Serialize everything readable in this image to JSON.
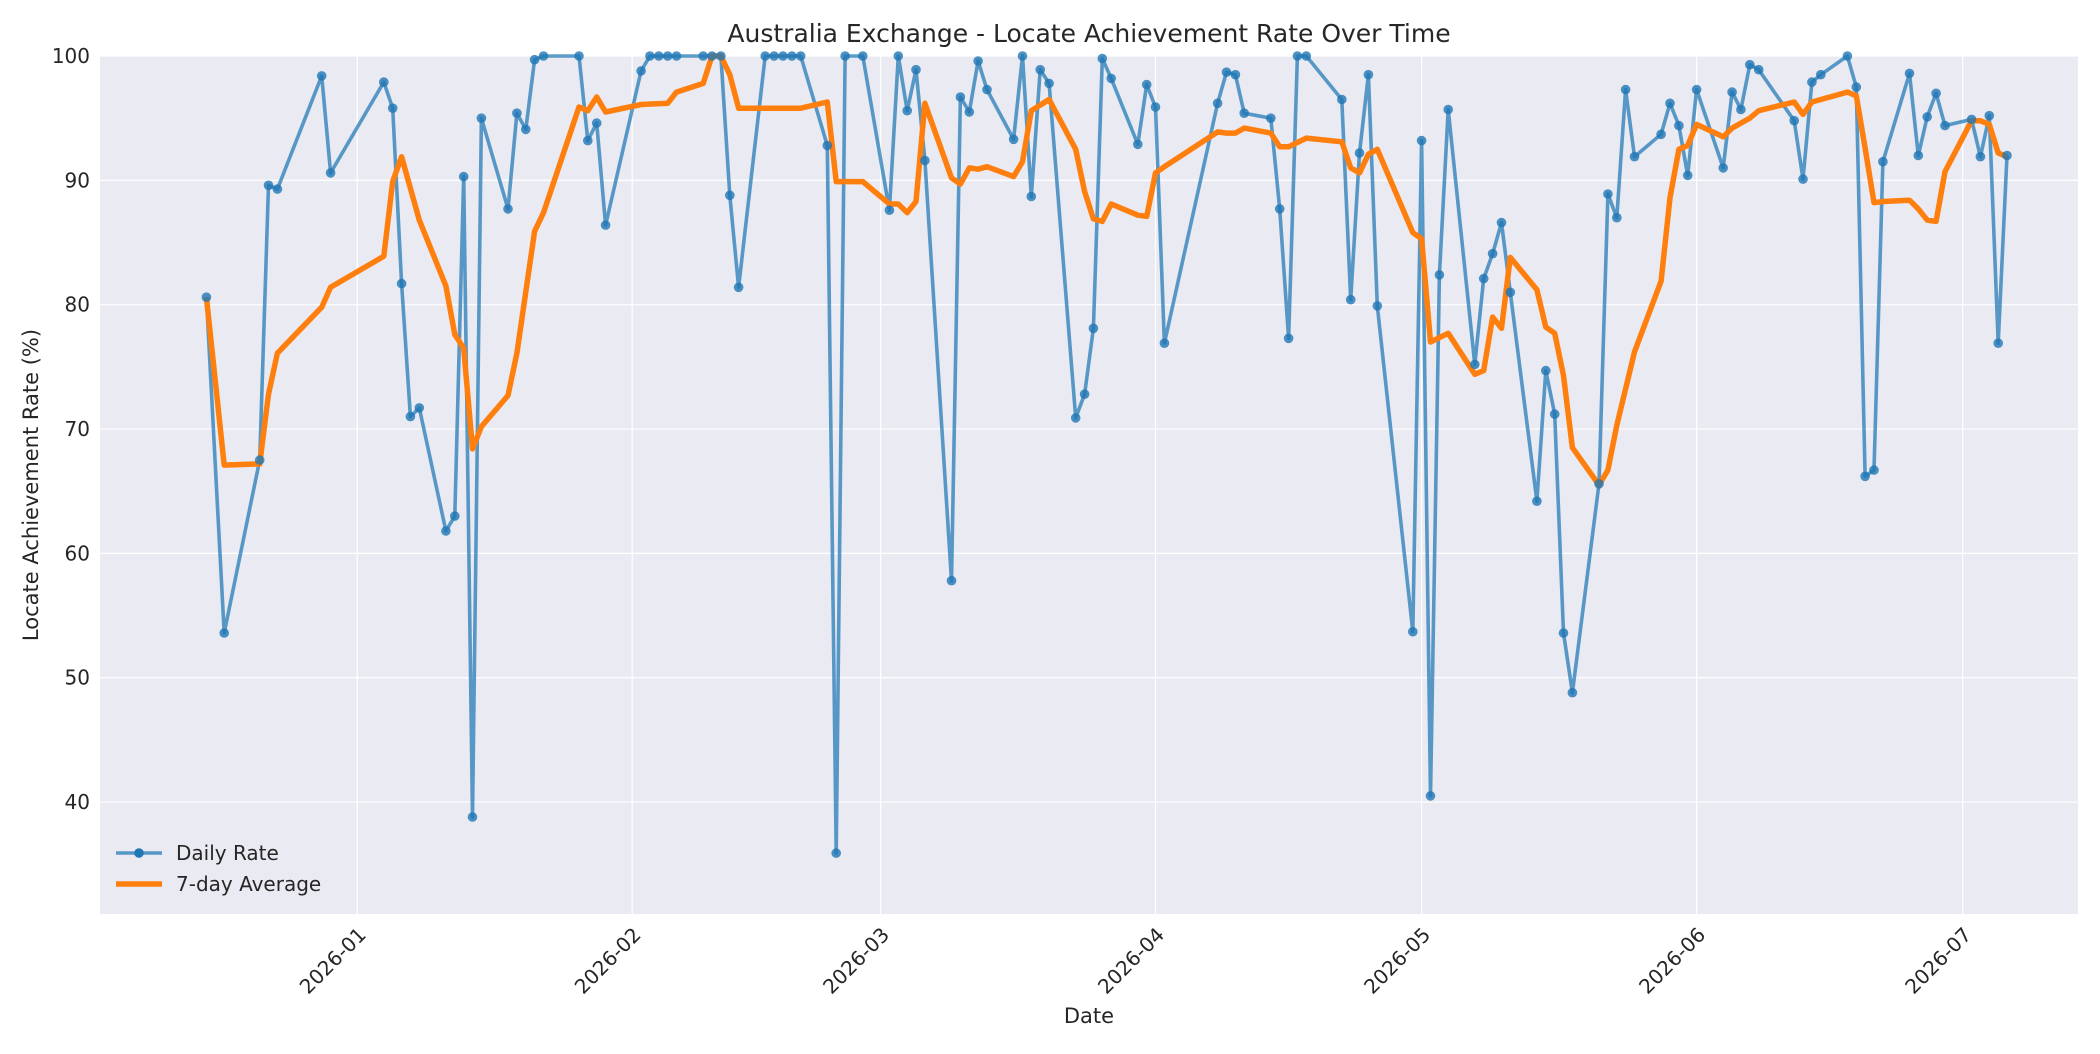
{
  "chart_data": {
    "type": "line",
    "title": "Australia Exchange - Locate Achievement Rate Over Time",
    "xlabel": "Date",
    "ylabel": "Locate Achievement Rate (%)",
    "x_domain": [
      "2025-12-03",
      "2026-07-14"
    ],
    "ylim": [
      31,
      100
    ],
    "yticks": [
      40,
      50,
      60,
      70,
      80,
      90,
      100
    ],
    "xticks": [
      "2026-01-01",
      "2026-02-01",
      "2026-03-01",
      "2026-04-01",
      "2026-05-01",
      "2026-06-01",
      "2026-07-01"
    ],
    "xtick_labels": [
      "2026-01",
      "2026-02",
      "2026-03",
      "2026-04",
      "2026-05",
      "2026-06",
      "2026-07"
    ],
    "grid": true,
    "legend_position": "lower-left",
    "colors": {
      "daily": "#1f77b4",
      "avg": "#ff7f0e",
      "background": "#eaeaf2",
      "grid": "#ffffff"
    },
    "series": [
      {
        "name": "Daily Rate",
        "style": "line-with-markers",
        "points": [
          [
            "2025-12-15",
            80.6
          ],
          [
            "2025-12-17",
            53.6
          ],
          [
            "2025-12-21",
            67.5
          ],
          [
            "2025-12-22",
            89.6
          ],
          [
            "2025-12-23",
            89.3
          ],
          [
            "2025-12-28",
            98.4
          ],
          [
            "2025-12-29",
            90.6
          ],
          [
            "2026-01-04",
            97.9
          ],
          [
            "2026-01-05",
            95.8
          ],
          [
            "2026-01-06",
            81.7
          ],
          [
            "2026-01-07",
            71.0
          ],
          [
            "2026-01-08",
            71.7
          ],
          [
            "2026-01-11",
            61.8
          ],
          [
            "2026-01-12",
            63.0
          ],
          [
            "2026-01-13",
            90.3
          ],
          [
            "2026-01-14",
            38.8
          ],
          [
            "2026-01-15",
            95.0
          ],
          [
            "2026-01-18",
            87.7
          ],
          [
            "2026-01-19",
            95.4
          ],
          [
            "2026-01-20",
            94.1
          ],
          [
            "2026-01-21",
            99.7
          ],
          [
            "2026-01-22",
            100.0
          ],
          [
            "2026-01-26",
            100.0
          ],
          [
            "2026-01-27",
            93.2
          ],
          [
            "2026-01-28",
            94.6
          ],
          [
            "2026-01-29",
            86.4
          ],
          [
            "2026-02-02",
            98.8
          ],
          [
            "2026-02-03",
            100.0
          ],
          [
            "2026-02-04",
            100.0
          ],
          [
            "2026-02-05",
            100.0
          ],
          [
            "2026-02-06",
            100.0
          ],
          [
            "2026-02-09",
            100.0
          ],
          [
            "2026-02-10",
            100.0
          ],
          [
            "2026-02-11",
            100.0
          ],
          [
            "2026-02-12",
            88.8
          ],
          [
            "2026-02-13",
            81.4
          ],
          [
            "2026-02-16",
            100.0
          ],
          [
            "2026-02-17",
            100.0
          ],
          [
            "2026-02-18",
            100.0
          ],
          [
            "2026-02-19",
            100.0
          ],
          [
            "2026-02-20",
            100.0
          ],
          [
            "2026-02-23",
            92.8
          ],
          [
            "2026-02-24",
            35.9
          ],
          [
            "2026-02-25",
            100.0
          ],
          [
            "2026-02-27",
            100.0
          ],
          [
            "2026-03-02",
            87.6
          ],
          [
            "2026-03-03",
            100.0
          ],
          [
            "2026-03-04",
            95.6
          ],
          [
            "2026-03-05",
            98.9
          ],
          [
            "2026-03-06",
            91.6
          ],
          [
            "2026-03-09",
            57.8
          ],
          [
            "2026-03-10",
            96.7
          ],
          [
            "2026-03-11",
            95.5
          ],
          [
            "2026-03-12",
            99.6
          ],
          [
            "2026-03-13",
            97.3
          ],
          [
            "2026-03-16",
            93.3
          ],
          [
            "2026-03-17",
            100.0
          ],
          [
            "2026-03-18",
            88.7
          ],
          [
            "2026-03-19",
            98.9
          ],
          [
            "2026-03-20",
            97.8
          ],
          [
            "2026-03-23",
            70.9
          ],
          [
            "2026-03-24",
            72.8
          ],
          [
            "2026-03-25",
            78.1
          ],
          [
            "2026-03-26",
            99.8
          ],
          [
            "2026-03-27",
            98.2
          ],
          [
            "2026-03-30",
            92.9
          ],
          [
            "2026-03-31",
            97.7
          ],
          [
            "2026-04-01",
            95.9
          ],
          [
            "2026-04-02",
            76.9
          ],
          [
            "2026-04-08",
            96.2
          ],
          [
            "2026-04-09",
            98.7
          ],
          [
            "2026-04-10",
            98.5
          ],
          [
            "2026-04-11",
            95.4
          ],
          [
            "2026-04-14",
            95.0
          ],
          [
            "2026-04-15",
            87.7
          ],
          [
            "2026-04-16",
            77.3
          ],
          [
            "2026-04-17",
            100.0
          ],
          [
            "2026-04-18",
            100.0
          ],
          [
            "2026-04-22",
            96.5
          ],
          [
            "2026-04-23",
            80.4
          ],
          [
            "2026-04-24",
            92.2
          ],
          [
            "2026-04-25",
            98.5
          ],
          [
            "2026-04-26",
            79.9
          ],
          [
            "2026-04-30",
            53.7
          ],
          [
            "2026-05-01",
            93.2
          ],
          [
            "2026-05-02",
            40.5
          ],
          [
            "2026-05-03",
            82.4
          ],
          [
            "2026-05-04",
            95.7
          ],
          [
            "2026-05-07",
            75.2
          ],
          [
            "2026-05-08",
            82.1
          ],
          [
            "2026-05-09",
            84.1
          ],
          [
            "2026-05-10",
            86.6
          ],
          [
            "2026-05-11",
            81.0
          ],
          [
            "2026-05-14",
            64.2
          ],
          [
            "2026-05-15",
            74.7
          ],
          [
            "2026-05-16",
            71.2
          ],
          [
            "2026-05-17",
            53.6
          ],
          [
            "2026-05-18",
            48.8
          ],
          [
            "2026-05-21",
            65.6
          ],
          [
            "2026-05-22",
            88.9
          ],
          [
            "2026-05-23",
            87.0
          ],
          [
            "2026-05-24",
            97.3
          ],
          [
            "2026-05-25",
            91.9
          ],
          [
            "2026-05-28",
            93.7
          ],
          [
            "2026-05-29",
            96.2
          ],
          [
            "2026-05-30",
            94.4
          ],
          [
            "2026-05-31",
            90.4
          ],
          [
            "2026-06-01",
            97.3
          ],
          [
            "2026-06-04",
            91.0
          ],
          [
            "2026-06-05",
            97.1
          ],
          [
            "2026-06-06",
            95.7
          ],
          [
            "2026-06-07",
            99.3
          ],
          [
            "2026-06-08",
            98.9
          ],
          [
            "2026-06-12",
            94.8
          ],
          [
            "2026-06-13",
            90.1
          ],
          [
            "2026-06-14",
            97.9
          ],
          [
            "2026-06-15",
            98.5
          ],
          [
            "2026-06-18",
            100.0
          ],
          [
            "2026-06-19",
            97.5
          ],
          [
            "2026-06-20",
            66.2
          ],
          [
            "2026-06-21",
            66.7
          ],
          [
            "2026-06-22",
            91.5
          ],
          [
            "2026-06-25",
            98.6
          ],
          [
            "2026-06-26",
            92.0
          ],
          [
            "2026-06-27",
            95.1
          ],
          [
            "2026-06-28",
            97.0
          ],
          [
            "2026-06-29",
            94.4
          ],
          [
            "2026-07-02",
            94.9
          ],
          [
            "2026-07-03",
            91.9
          ],
          [
            "2026-07-04",
            95.2
          ],
          [
            "2026-07-05",
            76.9
          ],
          [
            "2026-07-06",
            92.0
          ]
        ]
      },
      {
        "name": "7-day Average",
        "style": "line",
        "points": [
          [
            "2025-12-15",
            80.6
          ],
          [
            "2025-12-17",
            67.1
          ],
          [
            "2025-12-21",
            67.2
          ],
          [
            "2025-12-22",
            72.8
          ],
          [
            "2025-12-23",
            76.1
          ],
          [
            "2025-12-28",
            79.8
          ],
          [
            "2025-12-29",
            81.4
          ],
          [
            "2026-01-04",
            83.9
          ],
          [
            "2026-01-05",
            89.9
          ],
          [
            "2026-01-06",
            91.9
          ],
          [
            "2026-01-08",
            86.8
          ],
          [
            "2026-01-11",
            81.5
          ],
          [
            "2026-01-12",
            77.6
          ],
          [
            "2026-01-13",
            76.5
          ],
          [
            "2026-01-14",
            68.4
          ],
          [
            "2026-01-15",
            70.2
          ],
          [
            "2026-01-18",
            72.7
          ],
          [
            "2026-01-19",
            76.1
          ],
          [
            "2026-01-21",
            85.9
          ],
          [
            "2026-01-22",
            87.4
          ],
          [
            "2026-01-26",
            95.9
          ],
          [
            "2026-01-27",
            95.6
          ],
          [
            "2026-01-28",
            96.7
          ],
          [
            "2026-01-29",
            95.5
          ],
          [
            "2026-02-02",
            96.1
          ],
          [
            "2026-02-05",
            96.2
          ],
          [
            "2026-02-06",
            97.1
          ],
          [
            "2026-02-09",
            97.8
          ],
          [
            "2026-02-10",
            100.0
          ],
          [
            "2026-02-11",
            100.0
          ],
          [
            "2026-02-12",
            98.5
          ],
          [
            "2026-02-13",
            95.8
          ],
          [
            "2026-02-20",
            95.8
          ],
          [
            "2026-02-23",
            96.3
          ],
          [
            "2026-02-24",
            89.9
          ],
          [
            "2026-02-27",
            89.9
          ],
          [
            "2026-03-02",
            88.1
          ],
          [
            "2026-03-03",
            88.1
          ],
          [
            "2026-03-04",
            87.4
          ],
          [
            "2026-03-05",
            88.3
          ],
          [
            "2026-03-06",
            96.2
          ],
          [
            "2026-03-09",
            90.2
          ],
          [
            "2026-03-10",
            89.7
          ],
          [
            "2026-03-11",
            91.0
          ],
          [
            "2026-03-12",
            90.9
          ],
          [
            "2026-03-13",
            91.1
          ],
          [
            "2026-03-16",
            90.3
          ],
          [
            "2026-03-17",
            91.5
          ],
          [
            "2026-03-18",
            95.6
          ],
          [
            "2026-03-20",
            96.5
          ],
          [
            "2026-03-23",
            92.5
          ],
          [
            "2026-03-24",
            89.1
          ],
          [
            "2026-03-25",
            86.9
          ],
          [
            "2026-03-26",
            86.7
          ],
          [
            "2026-03-27",
            88.1
          ],
          [
            "2026-03-30",
            87.2
          ],
          [
            "2026-03-31",
            87.1
          ],
          [
            "2026-04-01",
            90.6
          ],
          [
            "2026-04-02",
            91.1
          ],
          [
            "2026-04-08",
            93.9
          ],
          [
            "2026-04-09",
            93.8
          ],
          [
            "2026-04-10",
            93.8
          ],
          [
            "2026-04-11",
            94.2
          ],
          [
            "2026-04-14",
            93.8
          ],
          [
            "2026-04-15",
            92.7
          ],
          [
            "2026-04-16",
            92.7
          ],
          [
            "2026-04-18",
            93.4
          ],
          [
            "2026-04-22",
            93.1
          ],
          [
            "2026-04-23",
            91.0
          ],
          [
            "2026-04-24",
            90.6
          ],
          [
            "2026-04-25",
            92.1
          ],
          [
            "2026-04-26",
            92.5
          ],
          [
            "2026-04-30",
            85.8
          ],
          [
            "2026-05-01",
            85.3
          ],
          [
            "2026-05-02",
            77.0
          ],
          [
            "2026-05-04",
            77.7
          ],
          [
            "2026-05-07",
            74.4
          ],
          [
            "2026-05-08",
            74.7
          ],
          [
            "2026-05-09",
            79.0
          ],
          [
            "2026-05-10",
            78.1
          ],
          [
            "2026-05-11",
            83.8
          ],
          [
            "2026-05-14",
            81.2
          ],
          [
            "2026-05-15",
            78.2
          ],
          [
            "2026-05-16",
            77.7
          ],
          [
            "2026-05-17",
            74.3
          ],
          [
            "2026-05-18",
            68.5
          ],
          [
            "2026-05-21",
            65.5
          ],
          [
            "2026-05-22",
            66.7
          ],
          [
            "2026-05-23",
            70.3
          ],
          [
            "2026-05-25",
            76.2
          ],
          [
            "2026-05-28",
            81.9
          ],
          [
            "2026-05-29",
            88.6
          ],
          [
            "2026-05-30",
            92.5
          ],
          [
            "2026-05-31",
            92.8
          ],
          [
            "2026-06-01",
            94.5
          ],
          [
            "2026-06-04",
            93.5
          ],
          [
            "2026-06-05",
            94.2
          ],
          [
            "2026-06-06",
            94.6
          ],
          [
            "2026-06-07",
            95.0
          ],
          [
            "2026-06-08",
            95.6
          ],
          [
            "2026-06-12",
            96.3
          ],
          [
            "2026-06-13",
            95.3
          ],
          [
            "2026-06-14",
            96.3
          ],
          [
            "2026-06-18",
            97.1
          ],
          [
            "2026-06-19",
            96.8
          ],
          [
            "2026-06-20",
            92.6
          ],
          [
            "2026-06-21",
            88.2
          ],
          [
            "2026-06-22",
            88.3
          ],
          [
            "2026-06-25",
            88.4
          ],
          [
            "2026-06-26",
            87.7
          ],
          [
            "2026-06-27",
            86.8
          ],
          [
            "2026-06-28",
            86.7
          ],
          [
            "2026-06-29",
            90.7
          ],
          [
            "2026-07-02",
            94.8
          ],
          [
            "2026-07-03",
            94.8
          ],
          [
            "2026-07-04",
            94.5
          ],
          [
            "2026-07-05",
            92.2
          ],
          [
            "2026-07-06",
            91.9
          ]
        ]
      }
    ]
  }
}
